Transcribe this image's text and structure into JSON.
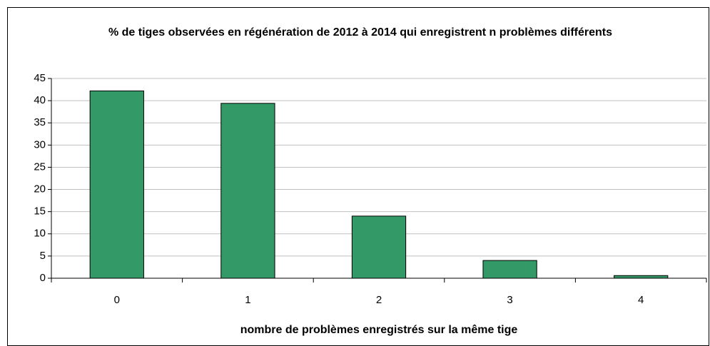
{
  "chart_data": {
    "type": "bar",
    "title": "% de tiges observées en régénération de 2012 à 2014 qui enregistrent n problèmes différents",
    "xlabel": "nombre de problèmes enregistrés sur la même tige",
    "categories": [
      "0",
      "1",
      "2",
      "3",
      "4"
    ],
    "values": [
      42.2,
      39.4,
      14,
      4,
      0.6
    ],
    "color": "#339966",
    "ylim": [
      0,
      45
    ],
    "yticks": [
      0,
      5,
      10,
      15,
      20,
      25,
      30,
      35,
      40,
      45
    ],
    "grid": true
  }
}
